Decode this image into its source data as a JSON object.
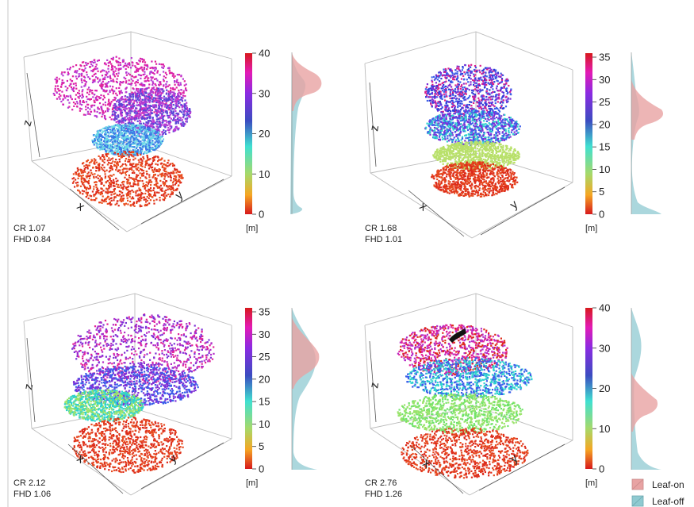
{
  "colormap": [
    "#d7191c",
    "#f5a623",
    "#a6d96a",
    "#40e0d0",
    "#3b4cc0",
    "#8a2be2",
    "#e31ab5",
    "#ff1493",
    "#d7191c"
  ],
  "units_label": "[m]",
  "axis_labels": {
    "x": "x",
    "y": "y",
    "z": "z"
  },
  "legend": {
    "items": [
      {
        "label": "Leaf-on",
        "color": "#e8a3a3"
      },
      {
        "label": "Leaf-off",
        "color": "#8fcad1"
      }
    ]
  },
  "panels": [
    {
      "cr": "CR 1.07",
      "fhd": "FHD 0.84",
      "ticks": [
        "40",
        "30",
        "20",
        "10",
        "0"
      ],
      "max": 43,
      "shape": "dense-top",
      "palette": [
        "#e0239b",
        "#d81fb0",
        "#b63bd4",
        "#5a47d8",
        "#3a7ae6",
        "#6ad7e6",
        "#e94f1f",
        "#dd2b1b"
      ]
    },
    {
      "cr": "CR 1.68",
      "fhd": "FHD 1.01",
      "ticks": [
        "35",
        "30",
        "25",
        "20",
        "15",
        "10",
        "5",
        "0"
      ],
      "max": 36,
      "shape": "box-canopy",
      "palette": [
        "#2b3ad6",
        "#3b5ee9",
        "#d81f8e",
        "#7d2fd6",
        "#2fd2ce",
        "#b8e06a",
        "#e74a1f",
        "#dd2b1b"
      ]
    },
    {
      "cr": "CR 2.12",
      "fhd": "FHD 1.06",
      "ticks": [
        "35",
        "30",
        "25",
        "20",
        "15",
        "10",
        "5",
        "0"
      ],
      "max": 36,
      "shape": "crowns",
      "palette": [
        "#b32ec9",
        "#7d2fd6",
        "#3b5ee9",
        "#2fd2ce",
        "#9be36a",
        "#e74a1f",
        "#dd2b1b",
        "#e0239b"
      ]
    },
    {
      "cr": "CR 2.76",
      "fhd": "FHD 1.26",
      "ticks": [
        "40",
        "30",
        "20",
        "10",
        "0"
      ],
      "max": 47,
      "shape": "multi-layer",
      "palette": [
        "#e0239b",
        "#b32ec9",
        "#3b5ee9",
        "#2fd2ce",
        "#6fe36a",
        "#9be36a",
        "#e74a1f",
        "#dd2b1b"
      ]
    }
  ]
}
